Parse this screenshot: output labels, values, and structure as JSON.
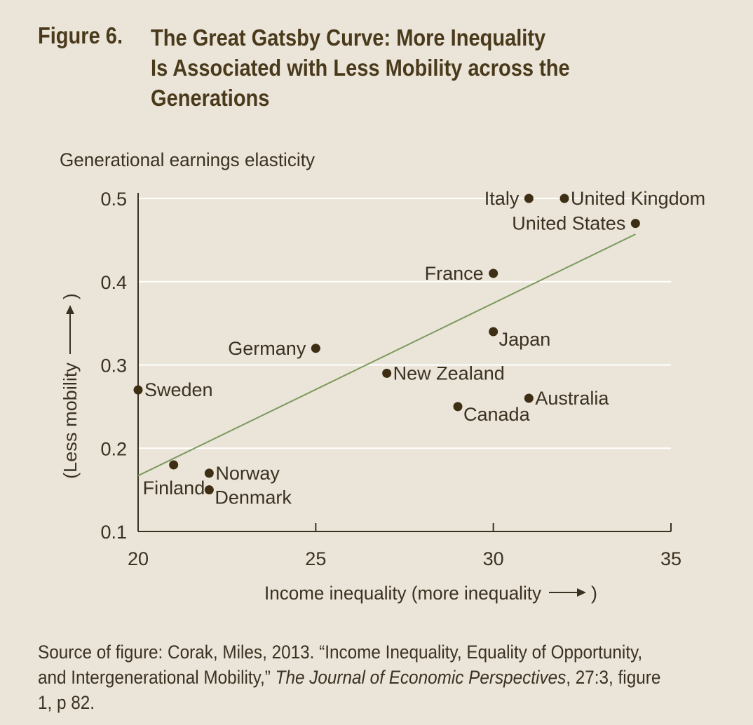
{
  "figure": {
    "number": "Figure 6.",
    "title_lines": [
      "The Great Gatsby Curve: More Inequality",
      "Is Associated with Less Mobility across the",
      "Generations"
    ]
  },
  "chart_data": {
    "type": "scatter",
    "title": "The Great Gatsby Curve: More Inequality Is Associated with Less Mobility across the Generations",
    "ylabel_top": "Generational earnings elasticity",
    "ylabel_side": "(Less mobility",
    "xlabel": "Income inequality (more inequality",
    "xlim": [
      20,
      35
    ],
    "ylim": [
      0.1,
      0.5
    ],
    "x_ticks": [
      "20",
      "25",
      "30",
      "35"
    ],
    "y_ticks": [
      "0.1",
      "0.2",
      "0.3",
      "0.4",
      "0.5"
    ],
    "grid": "horizontal",
    "points": [
      {
        "label": "Italy",
        "x": 31,
        "y": 0.5,
        "anchor": "left"
      },
      {
        "label": "United Kingdom",
        "x": 32,
        "y": 0.5,
        "anchor": "right"
      },
      {
        "label": "United States",
        "x": 34,
        "y": 0.47,
        "anchor": "left"
      },
      {
        "label": "France",
        "x": 30,
        "y": 0.41,
        "anchor": "left"
      },
      {
        "label": "Japan",
        "x": 30,
        "y": 0.34,
        "anchor": "right-below"
      },
      {
        "label": "Germany",
        "x": 25,
        "y": 0.32,
        "anchor": "left"
      },
      {
        "label": "New Zealand",
        "x": 27,
        "y": 0.29,
        "anchor": "right"
      },
      {
        "label": "Sweden",
        "x": 20,
        "y": 0.27,
        "anchor": "right"
      },
      {
        "label": "Australia",
        "x": 31,
        "y": 0.26,
        "anchor": "right"
      },
      {
        "label": "Canada",
        "x": 29,
        "y": 0.25,
        "anchor": "right-below"
      },
      {
        "label": "Finland",
        "x": 21,
        "y": 0.18,
        "anchor": "below-left"
      },
      {
        "label": "Norway",
        "x": 22,
        "y": 0.17,
        "anchor": "right"
      },
      {
        "label": "Denmark",
        "x": 22,
        "y": 0.15,
        "anchor": "right-below"
      }
    ],
    "trendline": {
      "x": [
        20,
        34
      ],
      "y": [
        0.167,
        0.457
      ]
    },
    "colors": {
      "points": "#3d2e14",
      "trendline": "#7b9a5e",
      "grid": "#ffffff",
      "axis": "#3a3121"
    }
  },
  "source": {
    "line1": "Source of figure: Corak, Miles, 2013. “Income Inequality, Equality of Opportunity,",
    "line2_pre": "and Intergenerational Mobility,”",
    "line2_journal": "The Journal of Economic Perspectives",
    "line2_post": ", 27:3, figure",
    "line3": "1, p 82."
  }
}
